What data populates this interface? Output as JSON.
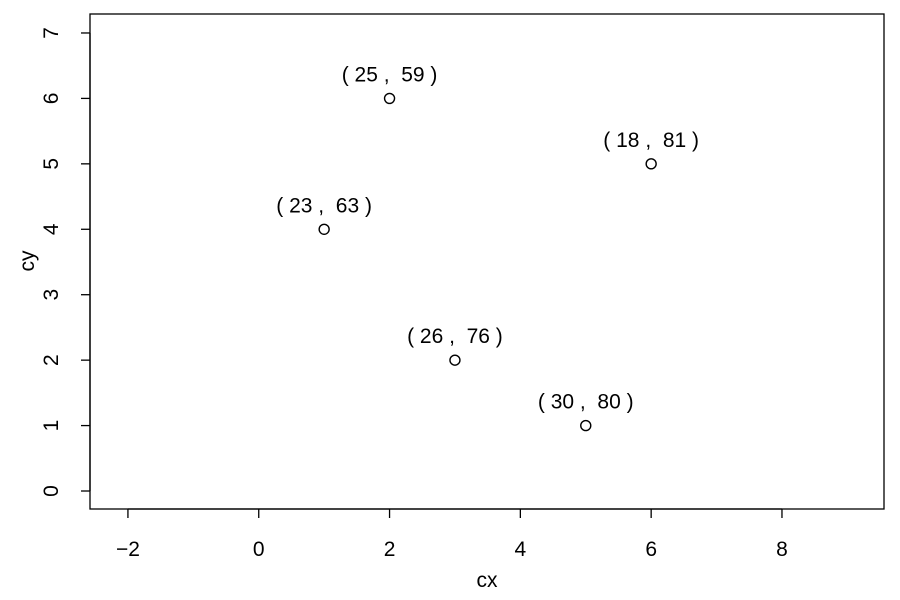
{
  "chart_data": {
    "type": "scatter",
    "x_label": "cx",
    "y_label": "cy",
    "x": [
      1,
      2,
      3,
      5,
      6
    ],
    "values": [
      4,
      6,
      2,
      1,
      5
    ],
    "labels": [
      "( 23 ,  63 )",
      "( 25 ,  59 )",
      "( 26 ,  76 )",
      "( 30 ,  80 )",
      "( 18 ,  81 )"
    ],
    "color": "#000000",
    "xlim": [
      -2.58,
      9.56
    ],
    "xticks": [
      {
        "value": -2,
        "label": "−2"
      },
      0,
      2,
      4,
      6,
      8
    ],
    "ylim": [
      -0.275,
      7.29
    ],
    "yticks": [
      0,
      1,
      2,
      3,
      4,
      5,
      6,
      7
    ]
  }
}
